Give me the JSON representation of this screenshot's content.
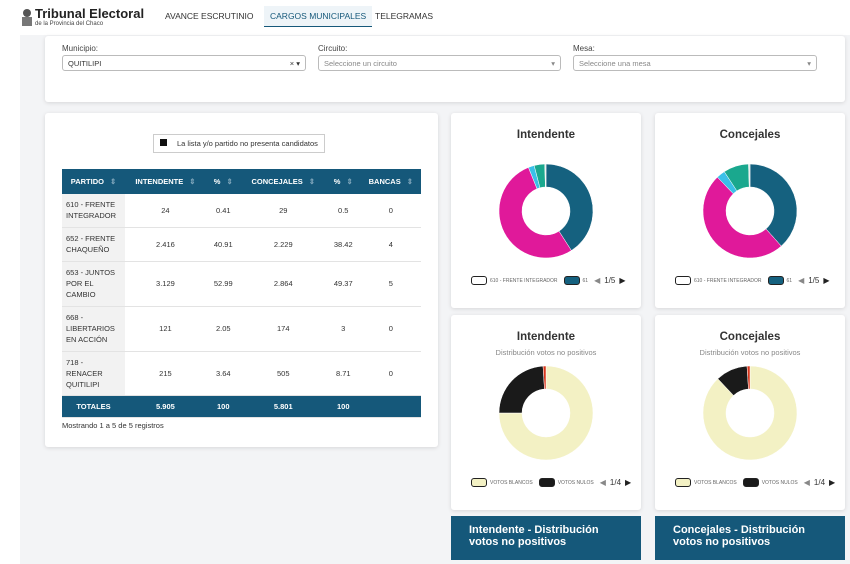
{
  "header": {
    "brand_title": "Tribunal Electoral",
    "brand_subtitle": "de la Provincia del Chaco",
    "nav": [
      "AVANCE ESCRUTINIO",
      "CARGOS MUNICIPALES",
      "TELEGRAMAS"
    ]
  },
  "filters": [
    {
      "label": "Municipio:",
      "value": "QUITILIPI"
    },
    {
      "label": "Circuito:",
      "value": "Seleccione un circuito"
    },
    {
      "label": "Mesa:",
      "value": "Seleccione una mesa"
    }
  ],
  "table": {
    "legend": "La lista y/o partido no presenta candidatos",
    "columns": [
      "PARTIDO",
      "INTENDENTE",
      "%",
      "CONCEJALES",
      "%",
      "BANCAS"
    ],
    "rows": [
      [
        "610 - FRENTE INTEGRADOR",
        "24",
        "0.41",
        "29",
        "0.5",
        "0"
      ],
      [
        "652 - FRENTE CHAQUEÑO",
        "2.416",
        "40.91",
        "2.229",
        "38.42",
        "4"
      ],
      [
        "653 - JUNTOS POR EL CAMBIO",
        "3.129",
        "52.99",
        "2.864",
        "49.37",
        "5"
      ],
      [
        "668 - LIBERTARIOS EN ACCIÓN",
        "121",
        "2.05",
        "174",
        "3",
        "0"
      ],
      [
        "718 - RENACER QUITILIPI",
        "215",
        "3.64",
        "505",
        "8.71",
        "0"
      ]
    ],
    "totals": [
      "TOTALES",
      "5.905",
      "100",
      "5.801",
      "100"
    ],
    "info": "Mostrando 1 a 5 de 5 registros"
  },
  "chart_data": [
    {
      "type": "donut",
      "title": "Intendente",
      "values": [
        40.91,
        52.99,
        2.05,
        3.64,
        0.41
      ],
      "colors": [
        "#15617f",
        "#e0199a",
        "#3ac0e8",
        "#1aa88e",
        "#e6e6e6"
      ],
      "legend": [
        {
          "label": "610 - FRENTE INTEGRADOR",
          "color": "#ffffff"
        },
        {
          "label": "61",
          "color": "#15617f"
        }
      ],
      "pager": "1/5"
    },
    {
      "type": "donut",
      "title": "Concejales",
      "values": [
        38.42,
        49.37,
        3,
        8.71,
        0.5
      ],
      "colors": [
        "#15617f",
        "#e0199a",
        "#3ac0e8",
        "#1aa88e",
        "#e6e6e6"
      ],
      "legend": [
        {
          "label": "610 - FRENTE INTEGRADOR",
          "color": "#ffffff"
        },
        {
          "label": "61",
          "color": "#15617f"
        }
      ],
      "pager": "1/5"
    },
    {
      "type": "donut",
      "title": "Intendente",
      "subtitle": "Distribución votos no positivos",
      "values": [
        75,
        24,
        1
      ],
      "colors": [
        "#f3f1c4",
        "#1a1a1a",
        "#d8361c"
      ],
      "legend": [
        {
          "label": "VOTOS BLANCOS",
          "color": "#f3f1c4"
        },
        {
          "label": "VOTOS NULOS",
          "color": "#1a1a1a"
        }
      ],
      "pager": "1/4"
    },
    {
      "type": "donut",
      "title": "Concejales",
      "subtitle": "Distribución votos no positivos",
      "values": [
        88,
        11,
        1
      ],
      "colors": [
        "#f3f1c4",
        "#1a1a1a",
        "#d8361c"
      ],
      "legend": [
        {
          "label": "VOTOS BLANCOS",
          "color": "#f3f1c4"
        },
        {
          "label": "VOTOS NULOS",
          "color": "#1a1a1a"
        }
      ],
      "pager": "1/4"
    }
  ],
  "footer_cards": [
    "Intendente - Distribución votos no positivos",
    "Concejales - Distribución votos no positivos"
  ]
}
